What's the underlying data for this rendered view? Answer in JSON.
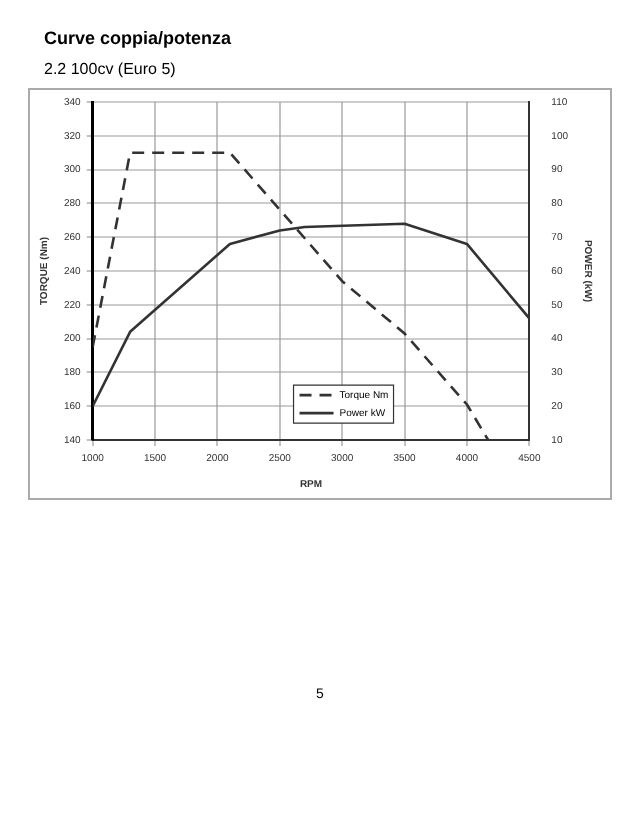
{
  "chart_data": {
    "type": "line",
    "title": "Curve coppia/potenza",
    "subtitle": "2.2 100cv (Euro 5)",
    "xlabel": "RPM",
    "ylabel": "TORQUE (Nm)",
    "y2label": "POWER (kW)",
    "xlim": [
      1000,
      4500
    ],
    "xticks": [
      1000,
      1500,
      2000,
      2500,
      3000,
      3500,
      4000,
      4500
    ],
    "ylim": [
      140,
      340
    ],
    "yticks": [
      140,
      160,
      180,
      200,
      220,
      240,
      260,
      280,
      300,
      320,
      340
    ],
    "y2lim": [
      10,
      110
    ],
    "y2ticks": [
      10,
      20,
      30,
      40,
      50,
      60,
      70,
      80,
      90,
      100,
      110
    ],
    "grid": true,
    "legend": "bottom right",
    "marker": "none",
    "series": [
      {
        "name": "Torque Nm",
        "color": "#333333",
        "line_style": "dashed",
        "x": [
          1000,
          1300,
          2100,
          3000,
          3500,
          4000,
          4170
        ],
        "values": [
          195,
          310,
          310,
          234,
          203,
          161,
          140
        ]
      },
      {
        "name": "Power kW",
        "color": "#333333",
        "line_style": "solid",
        "axis": "y2",
        "x": [
          1000,
          1300,
          2100,
          2500,
          2700,
          3500,
          4000,
          4500
        ],
        "values": [
          20,
          42,
          68,
          72,
          73,
          74,
          68,
          46
        ]
      }
    ],
    "annotations": [
      "5"
    ]
  }
}
